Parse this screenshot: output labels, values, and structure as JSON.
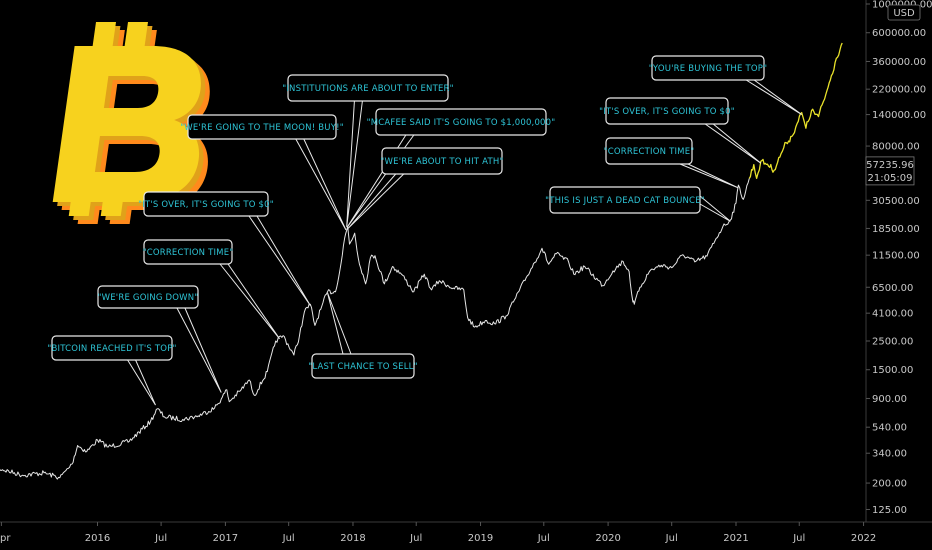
{
  "chart_data": {
    "type": "line",
    "title": "",
    "currency": "USD",
    "scale": "log",
    "ylim": [
      110,
      1200000
    ],
    "y_ticks": [
      125,
      200,
      340,
      540,
      900,
      1500,
      2500,
      4100,
      6500,
      11500,
      18500,
      30500,
      80000,
      140000,
      220000,
      360000,
      600000,
      1000000
    ],
    "y_tick_labels": [
      "125.00",
      "200.00",
      "340.00",
      "540.00",
      "900.00",
      "1500.00",
      "2500.00",
      "4100.00",
      "6500.00",
      "11500.00",
      "18500.00",
      "30500.00",
      "80000.00",
      "140000.00",
      "220000.00",
      "360000.00",
      "600000.00",
      "1000000.00"
    ],
    "x_tick_labels": [
      "pr",
      "2016",
      "Jul",
      "2017",
      "Jul",
      "2018",
      "Jul",
      "2019",
      "Jul",
      "2020",
      "Jul",
      "2021",
      "Jul",
      "2022"
    ],
    "x_tick_dates": [
      "2015-04-01",
      "2016-01-01",
      "2016-07-01",
      "2017-01-01",
      "2017-07-01",
      "2018-01-01",
      "2018-07-01",
      "2019-01-01",
      "2019-07-01",
      "2020-01-01",
      "2020-07-01",
      "2021-01-01",
      "2021-07-01",
      "2022-01-01"
    ],
    "series": [
      {
        "color": "#e6e6e6",
        "points": [
          [
            "2015-03-01",
            270
          ],
          [
            "2015-06-01",
            230
          ],
          [
            "2015-08-01",
            240
          ],
          [
            "2015-09-15",
            220
          ],
          [
            "2015-10-20",
            280
          ],
          [
            "2015-11-05",
            390
          ],
          [
            "2015-12-01",
            350
          ],
          [
            "2016-01-01",
            430
          ],
          [
            "2016-02-01",
            380
          ],
          [
            "2016-04-01",
            420
          ],
          [
            "2016-06-01",
            600
          ],
          [
            "2016-06-20",
            750
          ],
          [
            "2016-07-10",
            650
          ],
          [
            "2016-09-01",
            620
          ],
          [
            "2016-10-15",
            660
          ],
          [
            "2016-12-01",
            760
          ],
          [
            "2016-12-20",
            890
          ],
          [
            "2017-01-05",
            1050
          ],
          [
            "2017-01-12",
            850
          ],
          [
            "2017-02-15",
            1050
          ],
          [
            "2017-03-10",
            1250
          ],
          [
            "2017-03-25",
            950
          ],
          [
            "2017-05-01",
            1450
          ],
          [
            "2017-05-25",
            2500
          ],
          [
            "2017-06-15",
            2750
          ],
          [
            "2017-07-16",
            1950
          ],
          [
            "2017-08-01",
            2750
          ],
          [
            "2017-08-15",
            4200
          ],
          [
            "2017-09-01",
            4800
          ],
          [
            "2017-09-14",
            3300
          ],
          [
            "2017-10-01",
            4400
          ],
          [
            "2017-10-20",
            6000
          ],
          [
            "2017-11-12",
            6000
          ],
          [
            "2017-11-28",
            10000
          ],
          [
            "2017-12-08",
            15500
          ],
          [
            "2017-12-17",
            19200
          ],
          [
            "2017-12-22",
            14000
          ],
          [
            "2018-01-06",
            17000
          ],
          [
            "2018-01-16",
            11000
          ],
          [
            "2018-02-06",
            6900
          ],
          [
            "2018-02-20",
            11000
          ],
          [
            "2018-03-05",
            11400
          ],
          [
            "2018-04-01",
            6900
          ],
          [
            "2018-04-24",
            9400
          ],
          [
            "2018-05-20",
            8200
          ],
          [
            "2018-06-24",
            6000
          ],
          [
            "2018-07-24",
            8200
          ],
          [
            "2018-08-14",
            6200
          ],
          [
            "2018-09-05",
            7300
          ],
          [
            "2018-10-15",
            6400
          ],
          [
            "2018-11-14",
            6200
          ],
          [
            "2018-11-25",
            3800
          ],
          [
            "2018-12-15",
            3200
          ],
          [
            "2019-01-15",
            3600
          ],
          [
            "2019-02-10",
            3400
          ],
          [
            "2019-03-15",
            3900
          ],
          [
            "2019-04-05",
            5000
          ],
          [
            "2019-05-15",
            8000
          ],
          [
            "2019-06-26",
            13000
          ],
          [
            "2019-07-15",
            9800
          ],
          [
            "2019-08-06",
            11800
          ],
          [
            "2019-09-10",
            10200
          ],
          [
            "2019-09-25",
            8200
          ],
          [
            "2019-10-26",
            9400
          ],
          [
            "2019-12-17",
            6700
          ],
          [
            "2020-01-15",
            8700
          ],
          [
            "2020-02-13",
            10300
          ],
          [
            "2020-03-01",
            8600
          ],
          [
            "2020-03-12",
            5000
          ],
          [
            "2020-03-16",
            4800
          ],
          [
            "2020-04-01",
            6500
          ],
          [
            "2020-05-01",
            8800
          ],
          [
            "2020-06-01",
            9600
          ],
          [
            "2020-07-01",
            9200
          ],
          [
            "2020-08-02",
            11600
          ],
          [
            "2020-09-05",
            10200
          ],
          [
            "2020-10-10",
            11300
          ],
          [
            "2020-11-05",
            15500
          ],
          [
            "2020-11-24",
            19000
          ],
          [
            "2020-12-16",
            21500
          ],
          [
            "2021-01-01",
            29000
          ],
          [
            "2021-01-08",
            40000
          ],
          [
            "2021-01-22",
            31000
          ],
          [
            "2021-02-08",
            45000
          ]
        ]
      },
      {
        "color": "#e9e22a",
        "points": [
          [
            "2021-02-08",
            45000
          ],
          [
            "2021-02-21",
            57500
          ],
          [
            "2021-03-01",
            45000
          ],
          [
            "2021-03-13",
            61000
          ],
          [
            "2021-04-01",
            58000
          ],
          [
            "2021-04-20",
            52000
          ],
          [
            "2021-05-10",
            70000
          ],
          [
            "2021-05-25",
            85000
          ],
          [
            "2021-06-10",
            95000
          ],
          [
            "2021-06-25",
            120000
          ],
          [
            "2021-07-08",
            145000
          ],
          [
            "2021-07-20",
            110000
          ],
          [
            "2021-08-05",
            150000
          ],
          [
            "2021-08-25",
            135000
          ],
          [
            "2021-09-15",
            200000
          ],
          [
            "2021-10-01",
            280000
          ],
          [
            "2021-10-15",
            380000
          ],
          [
            "2021-11-01",
            500000
          ]
        ]
      }
    ],
    "annotations": [
      {
        "text": "\"BITCOIN REACHED IT'S TOP\"",
        "date": "2016-06-15",
        "value": 800
      },
      {
        "text": "\"WE'RE GOING DOWN\"",
        "date": "2016-12-20",
        "value": 1000
      },
      {
        "text": "\"CORRECTION TIME\"",
        "date": "2017-06-05",
        "value": 2600
      },
      {
        "text": "\"IT'S OVER, IT'S GOING TO $0\"",
        "date": "2017-09-01",
        "value": 4700
      },
      {
        "text": "\"WE'RE GOING TO THE MOON! BUY!\"",
        "date": "2017-12-12",
        "value": 18000
      },
      {
        "text": "\"INSTITUTIONS ARE ABOUT TO ENTER\"",
        "date": "2017-12-14",
        "value": 19000
      },
      {
        "text": "\"MCAFEE SAID IT'S GOING TO $1,000,000\"",
        "date": "2017-12-16",
        "value": 19000
      },
      {
        "text": "\"WE'RE ABOUT TO HIT ATH\"",
        "date": "2017-12-18",
        "value": 18500
      },
      {
        "text": "\"LAST CHANCE TO SELL\"",
        "date": "2017-10-20",
        "value": 5900
      },
      {
        "text": "\"THIS IS JUST A DEAD CAT BOUNCE\"",
        "date": "2020-12-16",
        "value": 21000
      },
      {
        "text": "\"CORRECTION TIME\"",
        "date": "2021-01-08",
        "value": 38000
      },
      {
        "text": "\"IT'S OVER, IT'S GOING TO $0\"",
        "date": "2021-03-13",
        "value": 59000
      },
      {
        "text": "\"YOU'RE BUYING THE TOP\"",
        "date": "2021-07-08",
        "value": 140000
      }
    ],
    "price_label": "57235.96",
    "time_label": "21:05:09",
    "price_label_value": 57235.96
  },
  "logo": {
    "symbol": "bitcoin-logo",
    "colors": [
      "#f7d21e",
      "#e0a21a",
      "#ff8a1c"
    ]
  }
}
